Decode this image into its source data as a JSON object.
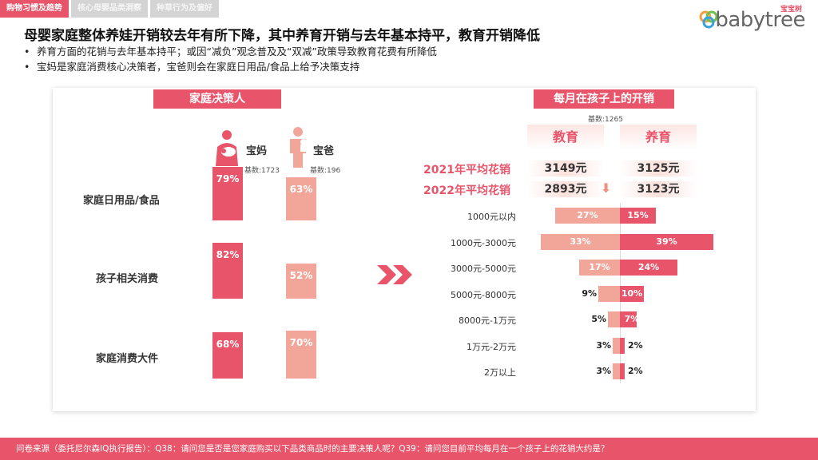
{
  "tabs": [
    "购物习惯及趋势",
    "核心母婴品类洞察",
    "种草行为及偏好"
  ],
  "logo": {
    "sub": "宝宝树",
    "text": "babytree"
  },
  "headline": "母婴家庭整体养娃开销较去年有所下降，其中养育开销与去年基本持平，教育开销降低",
  "bullets": [
    "养育方面的花销与去年基本持平；或因“减负”观念普及及“双减”政策导致教育花费有所降低",
    "宝妈是家庭消费核心决策者，宝爸则会在家庭日用品/食品上给予决策支持"
  ],
  "colors": {
    "accent": "#e8556b",
    "light": "#f2a69a"
  },
  "left": {
    "title": "家庭决策人",
    "mom": {
      "name": "宝妈",
      "base": "基数:1723",
      "icon": "mother-baby-icon"
    },
    "dad": {
      "name": "宝爸",
      "base": "基数:196",
      "icon": "father-baby-icon"
    }
  },
  "right": {
    "title": "每月在孩子上的开销",
    "base": "基数:1265",
    "col_edu": "教育",
    "col_care": "养育",
    "avg": [
      {
        "label": "2021年平均花销",
        "edu": "3149元",
        "care": "3125元"
      },
      {
        "label": "2022年平均花销",
        "edu": "2893元",
        "care": "3123元"
      }
    ]
  },
  "chart_data": [
    {
      "type": "bar",
      "title": "家庭决策人",
      "categories": [
        "家庭日用品/食品",
        "孩子相关消费",
        "家庭消费大件"
      ],
      "series": [
        {
          "name": "宝妈",
          "values": [
            79,
            82,
            68
          ]
        },
        {
          "name": "宝爸",
          "values": [
            63,
            52,
            70
          ]
        }
      ],
      "unit": "%"
    },
    {
      "type": "bar",
      "title": "每月在孩子上的开销",
      "orientation": "horizontal-diverging",
      "categories": [
        "1000元以内",
        "1000元-3000元",
        "3000元-5000元",
        "5000元-8000元",
        "8000元-1万元",
        "1万元-2万元",
        "2万以上"
      ],
      "series": [
        {
          "name": "教育",
          "values": [
            27,
            33,
            17,
            9,
            5,
            3,
            3
          ]
        },
        {
          "name": "养育",
          "values": [
            15,
            39,
            24,
            10,
            7,
            2,
            2
          ]
        }
      ],
      "unit": "%"
    }
  ],
  "footer": "问卷来源（委托尼尔森IQ执行报告）：Q38：请问您是否是您家庭购买以下品类商品时的主要决策人呢？Q39：请问您目前平均每月在一个孩子上的花销大约是？"
}
